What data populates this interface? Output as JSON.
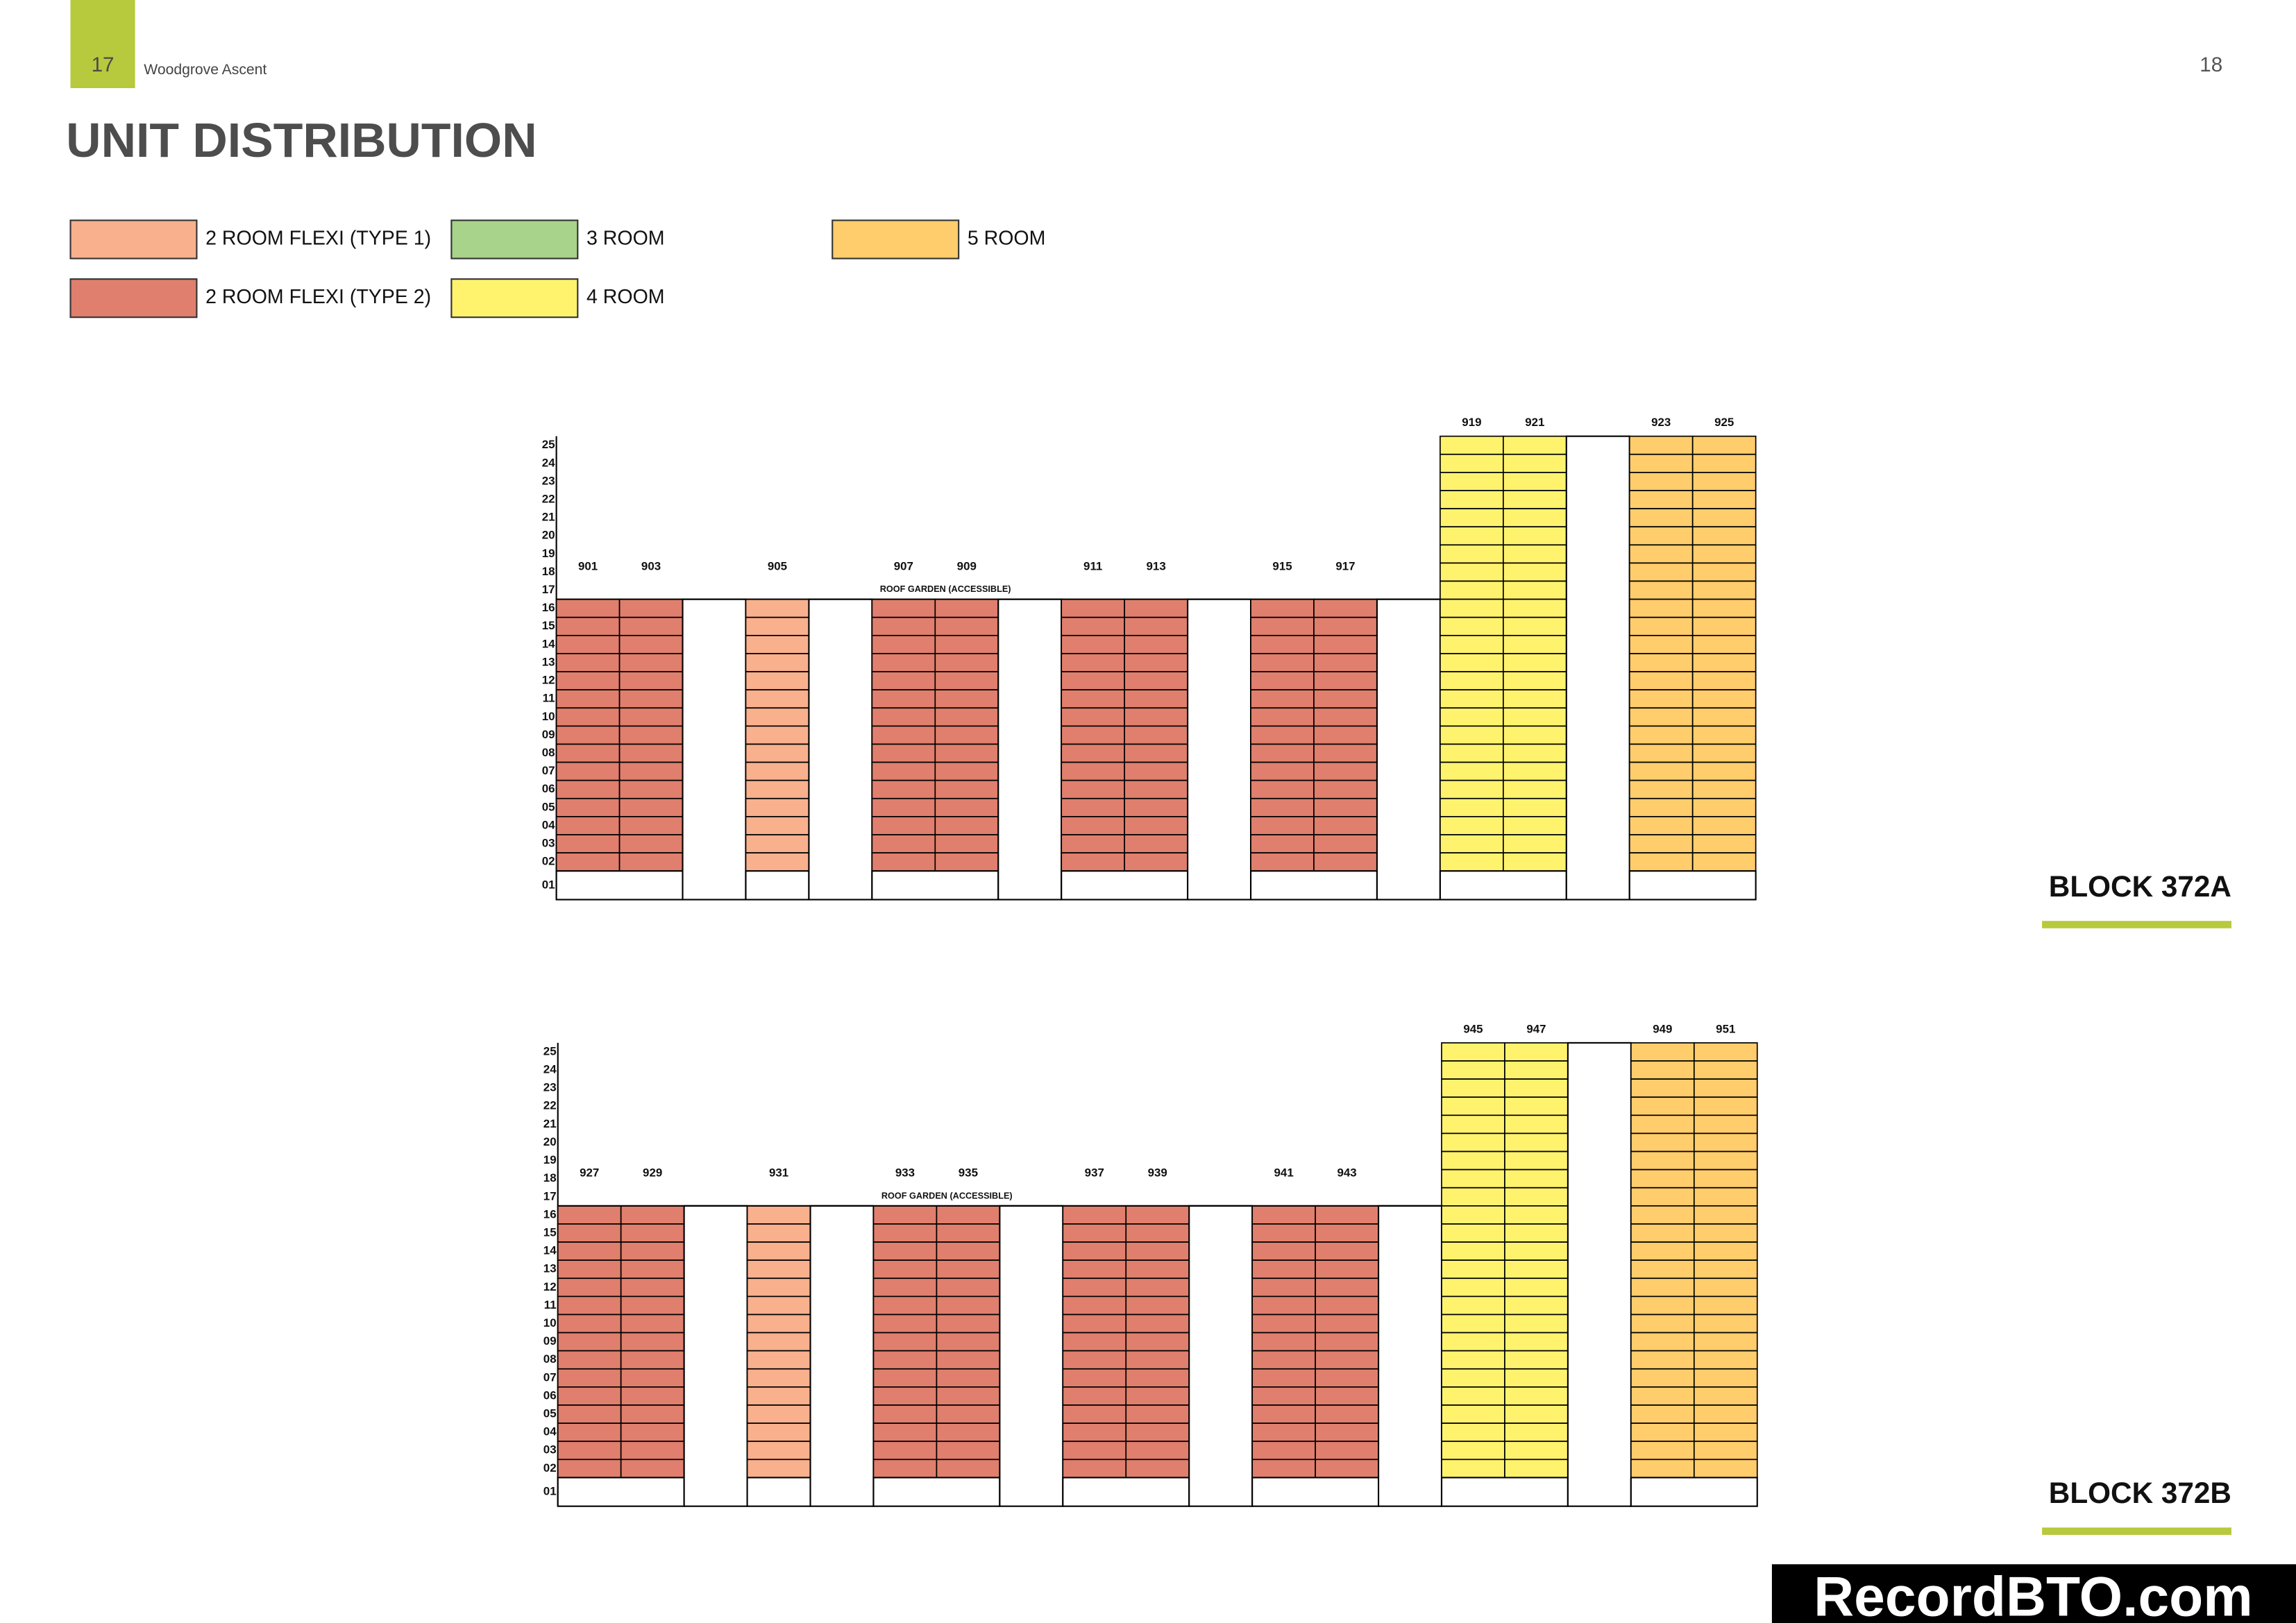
{
  "header": {
    "page_left": "17",
    "brand": "Woodgrove Ascent",
    "page_right": "18",
    "title": "UNIT DISTRIBUTION"
  },
  "legend": [
    {
      "label": "2  ROOM FLEXI (TYPE 1)",
      "color": "#f8b08d"
    },
    {
      "label": "2  ROOM FLEXI (TYPE 2)",
      "color": "#e07f6d"
    },
    {
      "label": "3 ROOM",
      "color": "#a8d38a"
    },
    {
      "label": "4 ROOM",
      "color": "#fff36e"
    },
    {
      "label": "5 ROOM",
      "color": "#ffcd6b"
    }
  ],
  "blocks": [
    {
      "name": "BLOCK 372A",
      "roof_garden": "ROOF GARDEN (ACCESSIBLE)",
      "floors": [
        "25",
        "24",
        "23",
        "22",
        "21",
        "20",
        "19",
        "18",
        "17",
        "16",
        "15",
        "14",
        "13",
        "12",
        "11",
        "10",
        "09",
        "08",
        "07",
        "06",
        "05",
        "04",
        "03",
        "02",
        "01"
      ],
      "groups": [
        {
          "units": [
            "901",
            "903"
          ],
          "type": 1
        },
        {
          "units": [
            "905"
          ],
          "type": 0
        },
        {
          "units": [
            "907",
            "909"
          ],
          "type": 1
        },
        {
          "units": [
            "911",
            "913"
          ],
          "type": 1
        },
        {
          "units": [
            "915",
            "917"
          ],
          "type": 1
        },
        {
          "units": [
            "919",
            "921"
          ],
          "type": 3
        },
        {
          "units": [
            "923",
            "925"
          ],
          "type": 4
        }
      ]
    },
    {
      "name": "BLOCK 372B",
      "roof_garden": "ROOF GARDEN (ACCESSIBLE)",
      "floors": [
        "25",
        "24",
        "23",
        "22",
        "21",
        "20",
        "19",
        "18",
        "17",
        "16",
        "15",
        "14",
        "13",
        "12",
        "11",
        "10",
        "09",
        "08",
        "07",
        "06",
        "05",
        "04",
        "03",
        "02",
        "01"
      ],
      "groups": [
        {
          "units": [
            "927",
            "929"
          ],
          "type": 1
        },
        {
          "units": [
            "931"
          ],
          "type": 0
        },
        {
          "units": [
            "933",
            "935"
          ],
          "type": 1
        },
        {
          "units": [
            "937",
            "939"
          ],
          "type": 1
        },
        {
          "units": [
            "941",
            "943"
          ],
          "type": 1
        },
        {
          "units": [
            "945",
            "947"
          ],
          "type": 3
        },
        {
          "units": [
            "949",
            "951"
          ],
          "type": 4
        }
      ]
    }
  ],
  "watermark": "RecordBTO.com"
}
